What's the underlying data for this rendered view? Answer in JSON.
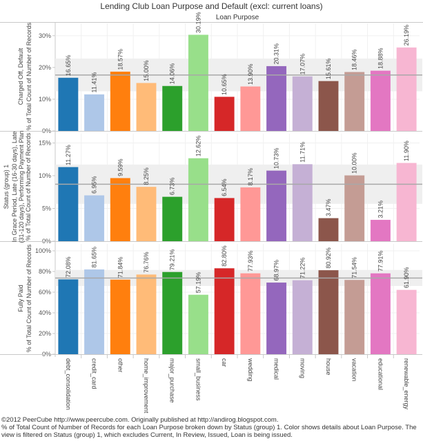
{
  "chart_data": {
    "type": "bar",
    "title": "Lending Club Loan Purpose and Default (excl: current loans)",
    "column_header": "Loan Purpose",
    "categories": [
      "debt_consolidation",
      "credit_card",
      "other",
      "home_improvement",
      "major_purchase",
      "small_business",
      "car",
      "wedding",
      "medical",
      "moving",
      "house",
      "vacation",
      "educational",
      "renewable_energy"
    ],
    "colors": [
      "#1f77b4",
      "#aec7e8",
      "#ff7f0e",
      "#ffbb78",
      "#2ca02c",
      "#98df8a",
      "#d62728",
      "#ff9896",
      "#9467bd",
      "#c5b0d5",
      "#8c564b",
      "#c49c94",
      "#e377c2",
      "#f7b6d2"
    ],
    "panels": [
      {
        "name": "charged-off",
        "row_label": "Charged Off, Default",
        "ylabel": "% of Total Count of Number of Records",
        "ylim": [
          0,
          33
        ],
        "ticks": [
          0,
          10,
          20,
          30
        ],
        "tick_labels": [
          "0%",
          "10%",
          "20%",
          "30%"
        ],
        "reference_line": 17.6,
        "reference_band": [
          12.5,
          22.8
        ],
        "values": [
          16.65,
          11.41,
          18.57,
          15.0,
          14.06,
          30.19,
          10.65,
          13.9,
          20.31,
          17.07,
          15.61,
          18.46,
          18.88,
          26.19
        ],
        "labels": [
          "16.65%",
          "11.41%",
          "18.57%",
          "15.00%",
          "14.06%",
          "30.19%",
          "10.65%",
          "13.90%",
          "20.31%",
          "17.07%",
          "15.61%",
          "18.46%",
          "18.88%",
          "26.19%"
        ]
      },
      {
        "name": "late",
        "row_label": "Status (group) 1",
        "row_label_lines": [
          "In Grace Period, Late (16-30 days), Late",
          "(31-120 days), Performing Payment Plan",
          "% of Total Count of Number of Records"
        ],
        "ylabel": "% of Total Count of Number of Records",
        "ylim": [
          0,
          16
        ],
        "ticks": [
          0,
          5,
          10,
          15
        ],
        "tick_labels": [
          "0%",
          "5%",
          "10%",
          "15%"
        ],
        "reference_line": 8.7,
        "reference_band": [
          5.7,
          11.7
        ],
        "values": [
          11.27,
          6.95,
          9.59,
          8.25,
          6.73,
          12.62,
          6.54,
          8.17,
          10.73,
          11.71,
          3.47,
          10.0,
          3.21,
          11.9
        ],
        "labels": [
          "11.27%",
          "6.95%",
          "9.59%",
          "8.25%",
          "6.73%",
          "12.62%",
          "6.54%",
          "8.17%",
          "10.73%",
          "11.71%",
          "3.47%",
          "10.00%",
          "3.21%",
          "11.90%"
        ]
      },
      {
        "name": "fully-paid",
        "row_label": "Fully Paid",
        "ylabel": "% of Total Count of Number of Records",
        "ylim": [
          0,
          104
        ],
        "ticks": [
          0,
          20,
          40,
          60,
          80,
          100
        ],
        "tick_labels": [
          "0%",
          "20%",
          "40%",
          "60%",
          "80%",
          "100%"
        ],
        "reference_line": 73.7,
        "reference_band": [
          66,
          81.5
        ],
        "values": [
          72.08,
          81.65,
          71.84,
          76.76,
          79.21,
          57.19,
          82.8,
          77.93,
          68.97,
          71.22,
          80.92,
          71.54,
          77.91,
          61.9
        ],
        "labels": [
          "72.08%",
          "81.65%",
          "71.84%",
          "76.76%",
          "79.21%",
          "57.19%",
          "82.80%",
          "77.93%",
          "68.97%",
          "71.22%",
          "80.92%",
          "71.54%",
          "77.91%",
          "61.90%"
        ]
      }
    ]
  },
  "footer": {
    "line1": "©2012 PeerCube http://www.peercube.com. Originally published at http://andirog.blogspot.com.",
    "line2": "% of Total Count of Number of Records for each Loan Purpose broken down by Status (group) 1.  Color shows details about Loan Purpose. The view is filtered on Status (group) 1, which excludes Current, In Review, Issued, Loan is being issued."
  }
}
